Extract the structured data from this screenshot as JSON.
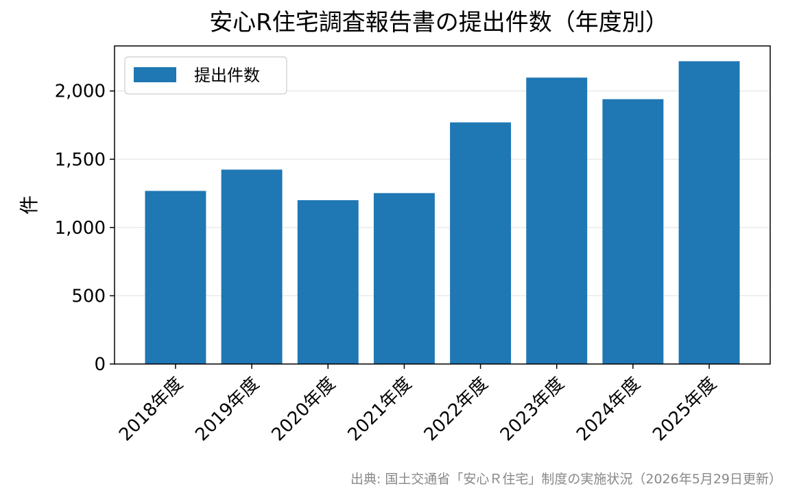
{
  "chart_data": {
    "type": "bar",
    "title": "安心R住宅調査報告書の提出件数（年度別）",
    "xlabel": "",
    "ylabel": "件",
    "categories": [
      "2018年度",
      "2019年度",
      "2020年度",
      "2021年度",
      "2022年度",
      "2023年度",
      "2024年度",
      "2025年度"
    ],
    "series": [
      {
        "name": "提出件数",
        "values": [
          1268,
          1424,
          1200,
          1252,
          1770,
          2098,
          1940,
          2218
        ]
      }
    ],
    "ylim": [
      0,
      2330
    ],
    "yticks": [
      0,
      500,
      1000,
      1500,
      2000
    ],
    "ytick_labels": [
      "0",
      "500",
      "1,000",
      "1,500",
      "2,000"
    ],
    "grid": "horizontal",
    "legend": "top-left",
    "bar_color": "#1f77b4",
    "source": "出典: 国土交通省「安心Ｒ住宅」制度の実施状況（2026年5月29日更新）"
  }
}
